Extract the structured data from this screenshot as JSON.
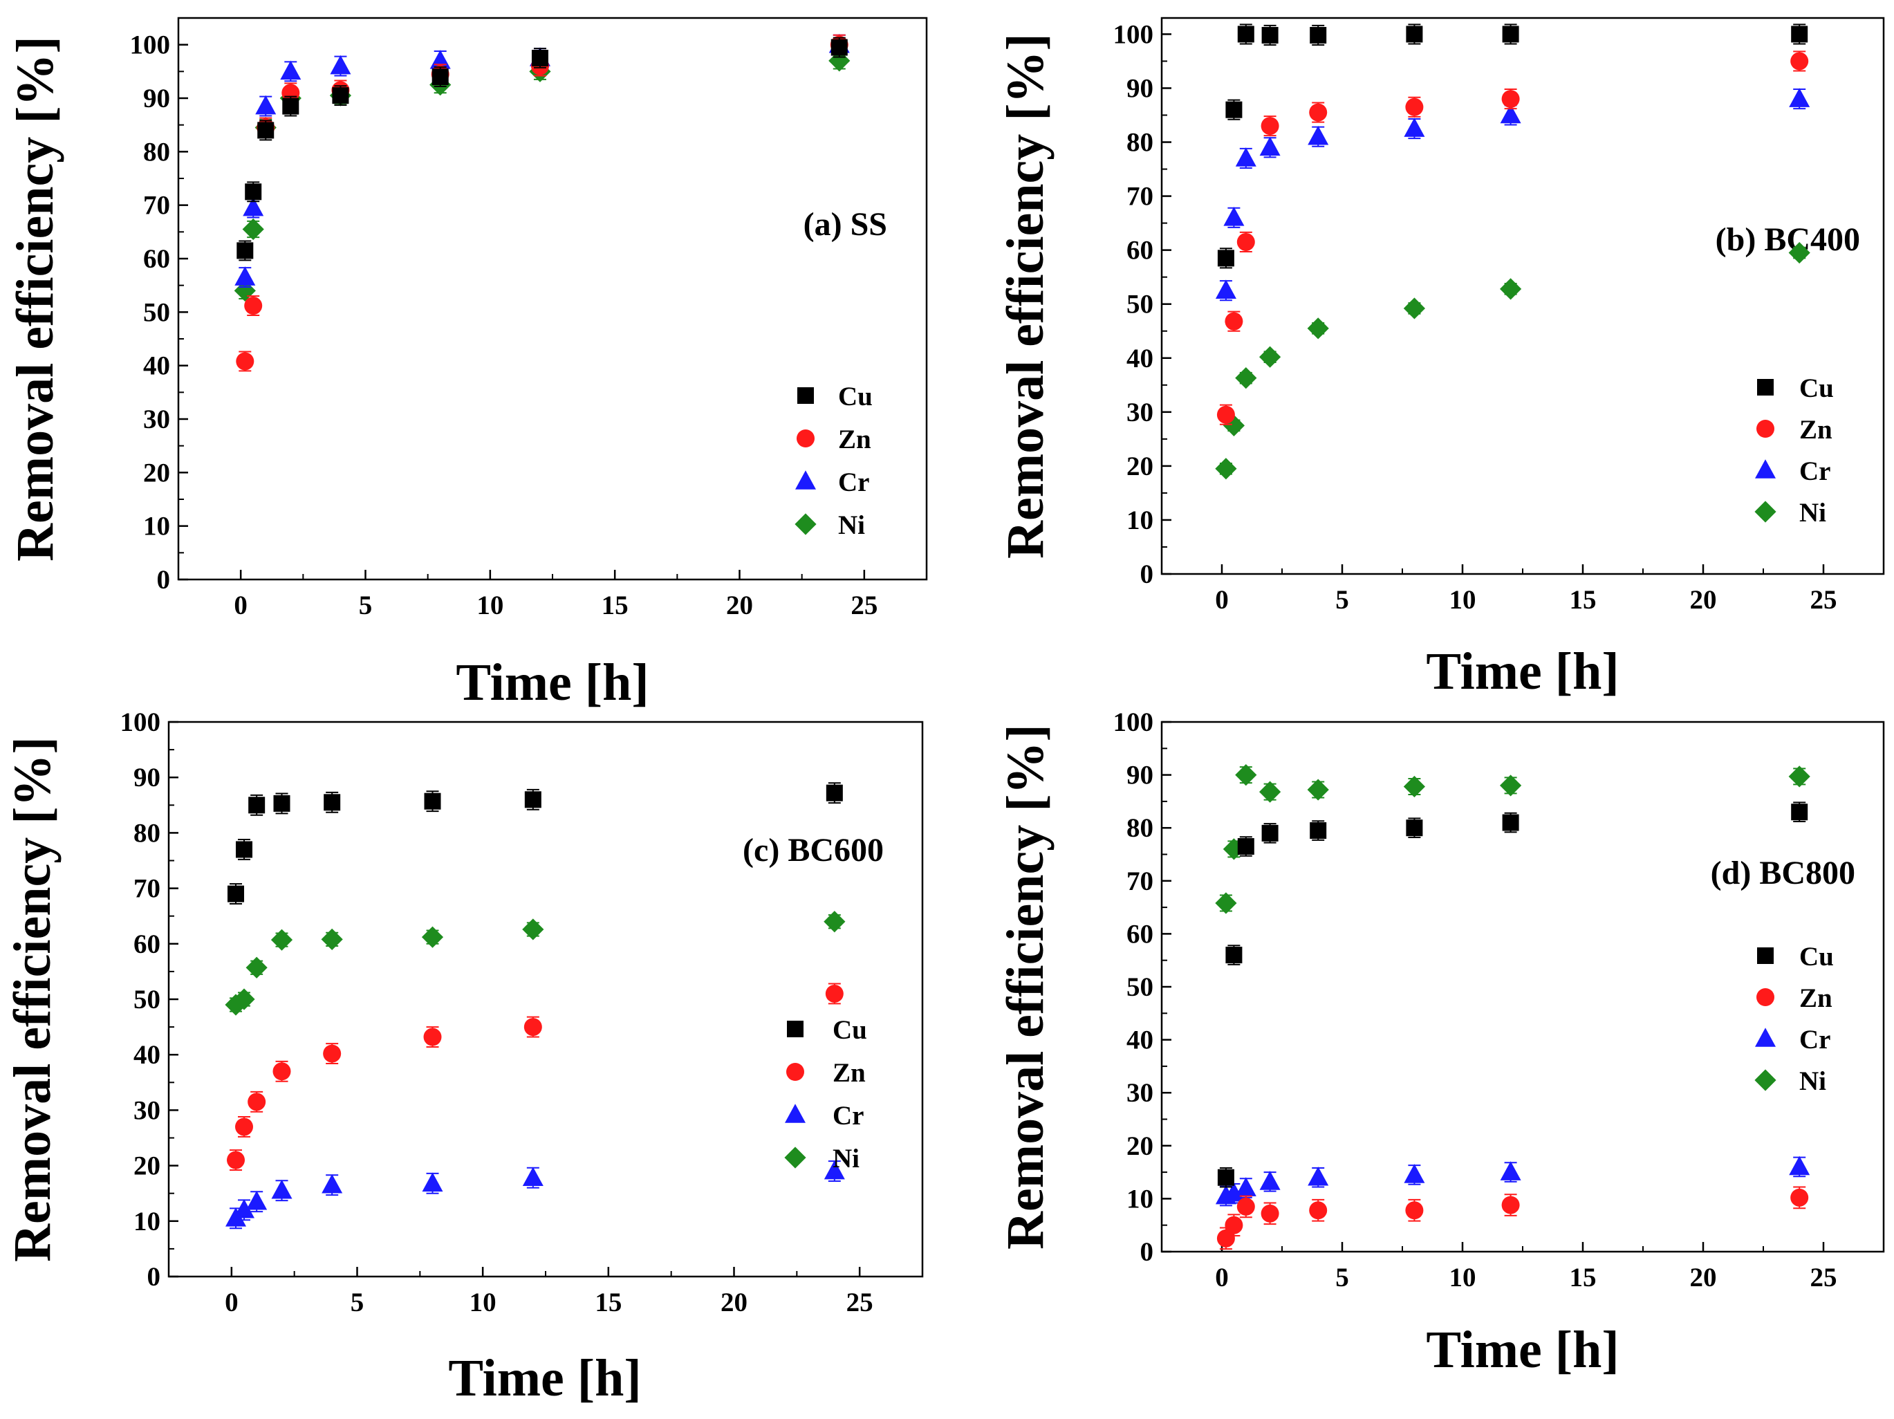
{
  "figure": {
    "style": {
      "colors": {
        "Cu": "#000000",
        "Zn": "#ff1a1a",
        "Cr": "#1a1aff",
        "Ni": "#1e8c1e"
      },
      "markers": {
        "Cu": "square",
        "Zn": "circle",
        "Cr": "triangle",
        "Ni": "diamond"
      }
    }
  },
  "chart_data": [
    {
      "id": "a",
      "type": "scatter",
      "title": "(a) SS",
      "xlabel": "Time [h]",
      "ylabel": "Removal efficiency [%]",
      "xlim": [
        -2.5,
        27.5
      ],
      "ylim": [
        0,
        105
      ],
      "xticks": [
        "0",
        "5",
        "10",
        "15",
        "20",
        "25"
      ],
      "yticks": [
        "0",
        "10",
        "20",
        "30",
        "40",
        "50",
        "60",
        "70",
        "80",
        "90",
        "100"
      ],
      "legend": [
        "Cu",
        "Zn",
        "Cr",
        "Ni"
      ],
      "series": [
        {
          "name": "Cu",
          "x": [
            0.17,
            0.5,
            1,
            2,
            4,
            8,
            12,
            24
          ],
          "y": [
            61.5,
            72.5,
            84,
            88.5,
            90.5,
            94,
            97.5,
            99.5
          ],
          "err": 1.8
        },
        {
          "name": "Zn",
          "x": [
            0.17,
            0.5,
            1,
            2,
            4,
            8,
            12,
            24
          ],
          "y": [
            40.8,
            51.2,
            84.5,
            91,
            91.5,
            94.5,
            96,
            100
          ],
          "err": 1.8
        },
        {
          "name": "Cr",
          "x": [
            0.17,
            0.5,
            1,
            2,
            4,
            8,
            12,
            24
          ],
          "y": [
            56.5,
            69.5,
            88.5,
            95,
            96,
            97,
            97.5,
            100
          ],
          "err": 1.8
        },
        {
          "name": "Ni",
          "x": [
            0.17,
            0.5,
            1,
            2,
            4,
            8,
            12,
            24
          ],
          "y": [
            54,
            65.5,
            84.5,
            90,
            90.5,
            92.5,
            95,
            97
          ],
          "err": 1.5
        }
      ]
    },
    {
      "id": "b",
      "type": "scatter",
      "title": "(b) BC400",
      "xlabel": "Time [h]",
      "ylabel": "Removal efficiency [%]",
      "xlim": [
        -2.5,
        27.5
      ],
      "ylim": [
        0,
        103
      ],
      "xticks": [
        "0",
        "5",
        "10",
        "15",
        "20",
        "25"
      ],
      "yticks": [
        "0",
        "10",
        "20",
        "30",
        "40",
        "50",
        "60",
        "70",
        "80",
        "90",
        "100"
      ],
      "legend": [
        "Cu",
        "Zn",
        "Cr",
        "Ni"
      ],
      "series": [
        {
          "name": "Cu",
          "x": [
            0.17,
            0.5,
            1,
            2,
            4,
            8,
            12,
            24
          ],
          "y": [
            58.5,
            86,
            100,
            99.8,
            99.8,
            100,
            100,
            100
          ],
          "err": 1.8
        },
        {
          "name": "Zn",
          "x": [
            0.17,
            0.5,
            1,
            2,
            4,
            8,
            12,
            24
          ],
          "y": [
            29.5,
            46.8,
            61.5,
            83,
            85.5,
            86.5,
            88,
            95
          ],
          "err": 1.8
        },
        {
          "name": "Cr",
          "x": [
            0.17,
            0.5,
            1,
            2,
            4,
            8,
            12,
            24
          ],
          "y": [
            52.5,
            66,
            77,
            79,
            81,
            82.5,
            85,
            88
          ],
          "err": 1.8
        },
        {
          "name": "Ni",
          "x": [
            0.17,
            0.5,
            1,
            2,
            4,
            8,
            12,
            24
          ],
          "y": [
            19.5,
            27.5,
            36.3,
            40.2,
            45.5,
            49.2,
            52.8,
            59.5
          ],
          "err": 1.0
        }
      ]
    },
    {
      "id": "c",
      "type": "scatter",
      "title": "(c) BC600",
      "xlabel": "Time [h]",
      "ylabel": "Removal efficiency [%]",
      "xlim": [
        -2.5,
        27.5
      ],
      "ylim": [
        0,
        100
      ],
      "xticks": [
        "0",
        "5",
        "10",
        "15",
        "20",
        "25"
      ],
      "yticks": [
        "0",
        "10",
        "20",
        "30",
        "40",
        "50",
        "60",
        "70",
        "80",
        "90",
        "100"
      ],
      "legend": [
        "Cu",
        "Zn",
        "Cr",
        "Ni"
      ],
      "series": [
        {
          "name": "Cu",
          "x": [
            0.17,
            0.5,
            1,
            2,
            4,
            8,
            12,
            24
          ],
          "y": [
            69,
            77,
            85,
            85.3,
            85.5,
            85.7,
            86,
            87.2
          ],
          "err": 1.8
        },
        {
          "name": "Zn",
          "x": [
            0.17,
            0.5,
            1,
            2,
            4,
            8,
            12,
            24
          ],
          "y": [
            21,
            27,
            31.5,
            37,
            40.2,
            43.2,
            45,
            51
          ],
          "err": 1.8
        },
        {
          "name": "Cr",
          "x": [
            0.17,
            0.5,
            1,
            2,
            4,
            8,
            12,
            24
          ],
          "y": [
            10.5,
            12,
            13.5,
            15.5,
            16.5,
            16.8,
            17.8,
            19
          ],
          "err": 1.8
        },
        {
          "name": "Ni",
          "x": [
            0.17,
            0.5,
            1,
            2,
            4,
            8,
            12,
            24
          ],
          "y": [
            49,
            50,
            55.7,
            60.7,
            60.8,
            61.2,
            62.6,
            64
          ],
          "err": 1.2
        }
      ]
    },
    {
      "id": "d",
      "type": "scatter",
      "title": "(d) BC800",
      "xlabel": "Time [h]",
      "ylabel": "Removal efficiency [%]",
      "xlim": [
        -2.5,
        27.5
      ],
      "ylim": [
        0,
        100
      ],
      "xticks": [
        "0",
        "5",
        "10",
        "15",
        "20",
        "25"
      ],
      "yticks": [
        "0",
        "10",
        "20",
        "30",
        "40",
        "50",
        "60",
        "70",
        "80",
        "90",
        "100"
      ],
      "legend": [
        "Cu",
        "Zn",
        "Cr",
        "Ni"
      ],
      "series": [
        {
          "name": "Cu",
          "x": [
            0.17,
            0.5,
            1,
            2,
            4,
            8,
            12,
            24
          ],
          "y": [
            14,
            56,
            76.5,
            79,
            79.5,
            80,
            81,
            83
          ],
          "err": 1.8
        },
        {
          "name": "Zn",
          "x": [
            0.17,
            0.5,
            1,
            2,
            4,
            8,
            12,
            24
          ],
          "y": [
            2.5,
            5,
            8.5,
            7.2,
            7.8,
            7.8,
            8.8,
            10.2
          ],
          "err": 2.0
        },
        {
          "name": "Cr",
          "x": [
            0.17,
            0.5,
            1,
            2,
            4,
            8,
            12,
            24
          ],
          "y": [
            10.5,
            11,
            12,
            13.2,
            14,
            14.5,
            15,
            16
          ],
          "err": 1.8
        },
        {
          "name": "Ni",
          "x": [
            0.17,
            0.5,
            1,
            2,
            4,
            8,
            12,
            24
          ],
          "y": [
            65.8,
            76,
            90,
            86.8,
            87.2,
            87.8,
            88,
            89.7
          ],
          "err": 1.5
        }
      ]
    }
  ]
}
